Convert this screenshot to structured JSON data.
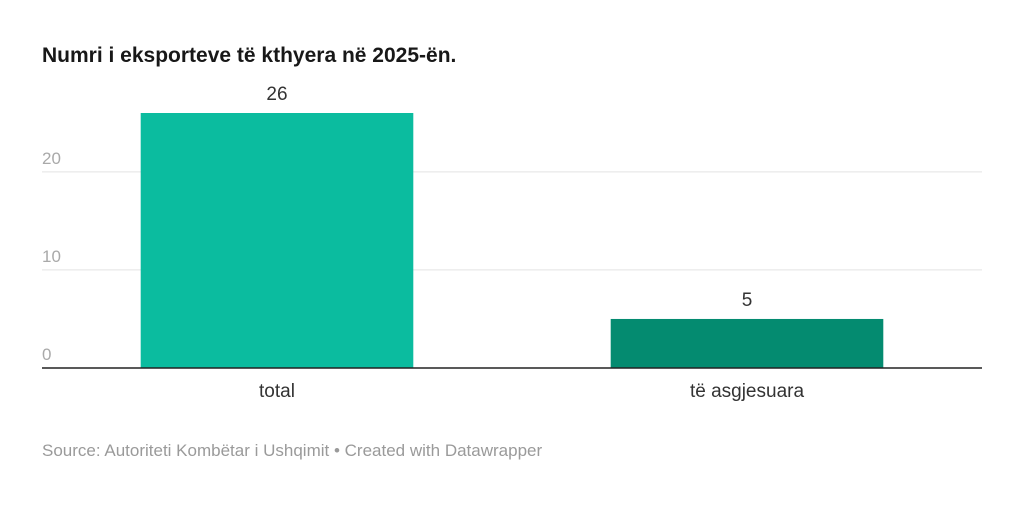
{
  "header": {
    "title": "Numri i eksporteve të kthyera në 2025-ën."
  },
  "footer": {
    "source": "Source: Autoriteti Kombëtar i Ushqimit",
    "separator": "•",
    "credit": "Created with Datawrapper"
  },
  "chart_data": {
    "type": "bar",
    "title": "Numri i eksporteve të kthyera në 2025-ën.",
    "categories": [
      "total",
      "të asgjesuara"
    ],
    "values": [
      26,
      5
    ],
    "colors": [
      "#0bbc9f",
      "#048b70"
    ],
    "ylim": [
      0,
      26
    ],
    "yticks": [
      0,
      10,
      20
    ],
    "grid": true,
    "legend": "none"
  }
}
